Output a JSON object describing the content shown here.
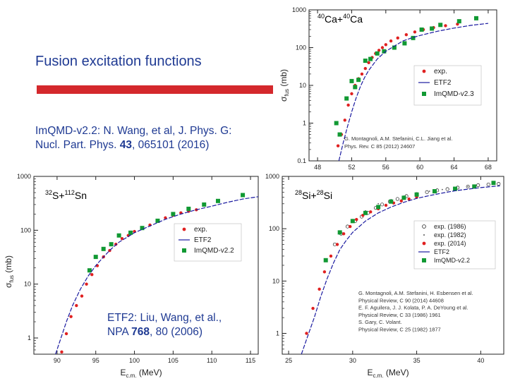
{
  "slide": {
    "title": "Fusion excitation functions",
    "immqd_ref_prefix": "ImQMD-v2.2: N. Wang, et al, J. Phys. G:",
    "immqd_ref_journal": "Nucl. Part. Phys. ",
    "immqd_ref_volume": "43",
    "immqd_ref_pages": ", 065101 (2016)",
    "etf2_ref_line1": "ETF2: Liu, Wang, et al.,",
    "etf2_ref_journal": "NPA ",
    "etf2_ref_volume": "768",
    "etf2_ref_pages": ", 80 (2006)"
  },
  "colors": {
    "exp": "#e02020",
    "etf2": "#1a1aa0",
    "immqd": "#119933",
    "title_text": "#1f3a93",
    "bar": "#d4282c"
  },
  "chart_data": [
    {
      "type": "scatter",
      "system_label": "40Ca+40Ca",
      "xlabel": "",
      "ylabel": "σfus (mb)",
      "y_scale": "log",
      "xlim": [
        47,
        69
      ],
      "ylim": [
        0.1,
        1000
      ],
      "x_ticks": [
        48,
        52,
        56,
        60,
        64,
        68
      ],
      "y_ticks": [
        0.1,
        1,
        10,
        100,
        1000
      ],
      "legend_position": "right",
      "legend": [
        "exp.",
        "ETF2",
        "ImQMD-v2.3"
      ],
      "citation": [
        "G. Montagnoli, A.M. Stefanini, C.L. Jiang et al.",
        "Phys. Rev. C 85 (2012) 24607"
      ],
      "series": [
        {
          "name": "exp.",
          "marker": "circle",
          "points": [
            [
              50.4,
              0.25
            ],
            [
              50.8,
              0.5
            ],
            [
              51.2,
              1.2
            ],
            [
              51.6,
              3
            ],
            [
              52,
              6
            ],
            [
              52.4,
              10
            ],
            [
              52.8,
              15
            ],
            [
              53.2,
              20
            ],
            [
              53.6,
              28
            ],
            [
              54,
              40
            ],
            [
              54.4,
              55
            ],
            [
              54.8,
              70
            ],
            [
              55.2,
              85
            ],
            [
              55.6,
              100
            ],
            [
              56,
              120
            ],
            [
              56.6,
              150
            ],
            [
              57.4,
              180
            ],
            [
              58.4,
              220
            ],
            [
              59.4,
              260
            ],
            [
              60.4,
              300
            ],
            [
              61.6,
              340
            ],
            [
              63,
              380
            ],
            [
              64.4,
              420
            ]
          ]
        },
        {
          "name": "ImQMD-v2.3",
          "marker": "square",
          "points": [
            [
              50.2,
              1
            ],
            [
              50.6,
              0.5
            ],
            [
              51.4,
              4.5
            ],
            [
              52,
              13
            ],
            [
              52.4,
              9
            ],
            [
              52.8,
              14
            ],
            [
              53.6,
              45
            ],
            [
              54.2,
              50
            ],
            [
              55,
              70
            ],
            [
              55.8,
              80
            ],
            [
              57,
              100
            ],
            [
              58.2,
              130
            ],
            [
              59.2,
              180
            ],
            [
              60.2,
              300
            ],
            [
              61.4,
              320
            ],
            [
              62.4,
              400
            ],
            [
              64.6,
              500
            ],
            [
              66.6,
              600
            ]
          ]
        },
        {
          "name": "ETF2",
          "marker": "line",
          "points": [
            [
              50.5,
              0.1
            ],
            [
              51,
              0.3
            ],
            [
              51.5,
              0.8
            ],
            [
              52,
              2
            ],
            [
              52.5,
              4.5
            ],
            [
              53,
              9
            ],
            [
              53.5,
              16
            ],
            [
              54,
              25
            ],
            [
              55,
              50
            ],
            [
              56,
              80
            ],
            [
              57,
              110
            ],
            [
              58,
              150
            ],
            [
              59,
              180
            ],
            [
              60,
              210
            ],
            [
              62,
              270
            ],
            [
              64,
              330
            ],
            [
              66,
              390
            ],
            [
              68,
              440
            ]
          ]
        }
      ]
    },
    {
      "type": "scatter",
      "system_label": "32S+112Sn",
      "xlabel": "Ec.m. (MeV)",
      "ylabel": "σfus (mb)",
      "y_scale": "log",
      "xlim": [
        87,
        116
      ],
      "ylim": [
        0.5,
        1000
      ],
      "x_ticks": [
        90,
        95,
        100,
        105,
        110,
        115
      ],
      "y_ticks": [
        1,
        10,
        100,
        1000
      ],
      "legend_position": "right",
      "legend": [
        "exp.",
        "ETF2",
        "ImQMD-v2.2"
      ],
      "series": [
        {
          "name": "exp.",
          "marker": "circle",
          "points": [
            [
              90.3,
              0.4
            ],
            [
              90.6,
              0.55
            ],
            [
              91.2,
              1.2
            ],
            [
              91.8,
              2.5
            ],
            [
              92.5,
              4
            ],
            [
              93.2,
              6
            ],
            [
              93.8,
              10
            ],
            [
              94.5,
              15
            ],
            [
              95.2,
              22
            ],
            [
              96,
              32
            ],
            [
              96.8,
              42
            ],
            [
              97.6,
              55
            ],
            [
              98.4,
              70
            ],
            [
              99.2,
              80
            ],
            [
              100,
              95
            ],
            [
              101,
              110
            ],
            [
              102,
              125
            ],
            [
              103,
              150
            ],
            [
              104,
              170
            ],
            [
              105,
              190
            ],
            [
              106,
              210
            ],
            [
              107,
              225
            ],
            [
              108,
              240
            ]
          ]
        },
        {
          "name": "ImQMD-v2.2",
          "marker": "square",
          "points": [
            [
              94.2,
              18
            ],
            [
              95,
              32
            ],
            [
              96,
              45
            ],
            [
              97,
              55
            ],
            [
              98,
              80
            ],
            [
              99.5,
              90
            ],
            [
              101,
              110
            ],
            [
              103,
              150
            ],
            [
              105,
              200
            ],
            [
              107,
              250
            ],
            [
              109,
              300
            ],
            [
              110.8,
              350
            ],
            [
              114,
              450
            ]
          ]
        },
        {
          "name": "ETF2",
          "marker": "line",
          "points": [
            [
              89.8,
              0.5
            ],
            [
              90.5,
              1
            ],
            [
              91.2,
              2
            ],
            [
              92,
              4
            ],
            [
              93,
              8
            ],
            [
              94,
              14
            ],
            [
              95,
              22
            ],
            [
              96,
              32
            ],
            [
              97,
              45
            ],
            [
              98,
              60
            ],
            [
              100,
              90
            ],
            [
              102,
              120
            ],
            [
              104,
              160
            ],
            [
              106,
              200
            ],
            [
              108,
              240
            ],
            [
              110,
              280
            ],
            [
              112,
              330
            ],
            [
              114,
              380
            ],
            [
              116,
              420
            ]
          ]
        }
      ]
    },
    {
      "type": "scatter",
      "system_label": "28Si+28Si",
      "xlabel": "Ec.m. (MeV)",
      "ylabel": "",
      "y_scale": "log",
      "xlim": [
        24.5,
        41.8
      ],
      "ylim": [
        0.4,
        1000
      ],
      "x_ticks": [
        25,
        30,
        35,
        40
      ],
      "y_ticks": [
        1,
        10,
        100,
        1000
      ],
      "legend_position": "right",
      "legend": [
        "exp. (1986)",
        "exp. (1982)",
        "exp. (2014)",
        "ETF2",
        "ImQMD-v2.2"
      ],
      "citation": [
        "G. Montagnoli, A.M. Stefanini, H. Esbensen et al.",
        "Physical Review, C 90 (2014) 44608",
        "E. F. Aguilera, J. J. Kolata, P. A. DeYoung et al.",
        "Physical Review, C 33 (1986) 1961",
        "S. Gary, C. Volant.",
        "Physical Review, C 25 (1982) 1877"
      ],
      "series": [
        {
          "name": "exp. (1986)",
          "marker": "open-circle",
          "points": [
            [
              28.6,
              50
            ],
            [
              29.1,
              80
            ],
            [
              29.6,
              110
            ],
            [
              30.2,
              140
            ],
            [
              30.7,
              170
            ],
            [
              31.2,
              200
            ],
            [
              31.8,
              250
            ],
            [
              32.3,
              290
            ],
            [
              32.9,
              330
            ],
            [
              33.5,
              370
            ],
            [
              34.2,
              420
            ],
            [
              35,
              460
            ],
            [
              35.8,
              500
            ],
            [
              36.6,
              540
            ],
            [
              37.4,
              570
            ],
            [
              38.2,
              610
            ],
            [
              39,
              640
            ],
            [
              39.8,
              680
            ],
            [
              40.6,
              700
            ],
            [
              41.4,
              720
            ]
          ]
        },
        {
          "name": "exp. (1982)",
          "marker": "dot",
          "points": [
            [
              30,
              150
            ],
            [
              31,
              220
            ],
            [
              32,
              300
            ],
            [
              33,
              360
            ],
            [
              34,
              420
            ],
            [
              35,
              480
            ],
            [
              36,
              520
            ],
            [
              37,
              560
            ],
            [
              38,
              600
            ],
            [
              39,
              640
            ]
          ]
        },
        {
          "name": "exp. (2014)",
          "marker": "circle",
          "points": [
            [
              26.4,
              1
            ],
            [
              26.9,
              3
            ],
            [
              27.4,
              7
            ],
            [
              27.8,
              15
            ],
            [
              28.3,
              30
            ],
            [
              28.8,
              50
            ],
            [
              29.3,
              80
            ],
            [
              29.8,
              110
            ],
            [
              30.3,
              150
            ],
            [
              30.8,
              180
            ],
            [
              31.4,
              210
            ],
            [
              32,
              240
            ],
            [
              32.6,
              280
            ],
            [
              33.2,
              310
            ],
            [
              33.8,
              340
            ],
            [
              34.4,
              370
            ],
            [
              35,
              400
            ]
          ]
        },
        {
          "name": "ImQMD-v2.2",
          "marker": "square",
          "points": [
            [
              27.9,
              25
            ],
            [
              29,
              85
            ],
            [
              30,
              140
            ],
            [
              31,
              200
            ],
            [
              32,
              260
            ],
            [
              33,
              330
            ],
            [
              34,
              390
            ],
            [
              35,
              450
            ],
            [
              36.4,
              520
            ],
            [
              38,
              580
            ],
            [
              39.5,
              640
            ],
            [
              41,
              750
            ]
          ]
        },
        {
          "name": "ETF2",
          "marker": "line",
          "points": [
            [
              26,
              0.4
            ],
            [
              26.5,
              0.9
            ],
            [
              27,
              2
            ],
            [
              27.5,
              5
            ],
            [
              28,
              11
            ],
            [
              28.5,
              22
            ],
            [
              29,
              40
            ],
            [
              29.5,
              60
            ],
            [
              30,
              85
            ],
            [
              31,
              140
            ],
            [
              32,
              200
            ],
            [
              33,
              260
            ],
            [
              34,
              320
            ],
            [
              35,
              380
            ],
            [
              36,
              430
            ],
            [
              37,
              480
            ],
            [
              38,
              530
            ],
            [
              39,
              570
            ],
            [
              40,
              610
            ],
            [
              41.5,
              660
            ]
          ]
        }
      ]
    }
  ]
}
